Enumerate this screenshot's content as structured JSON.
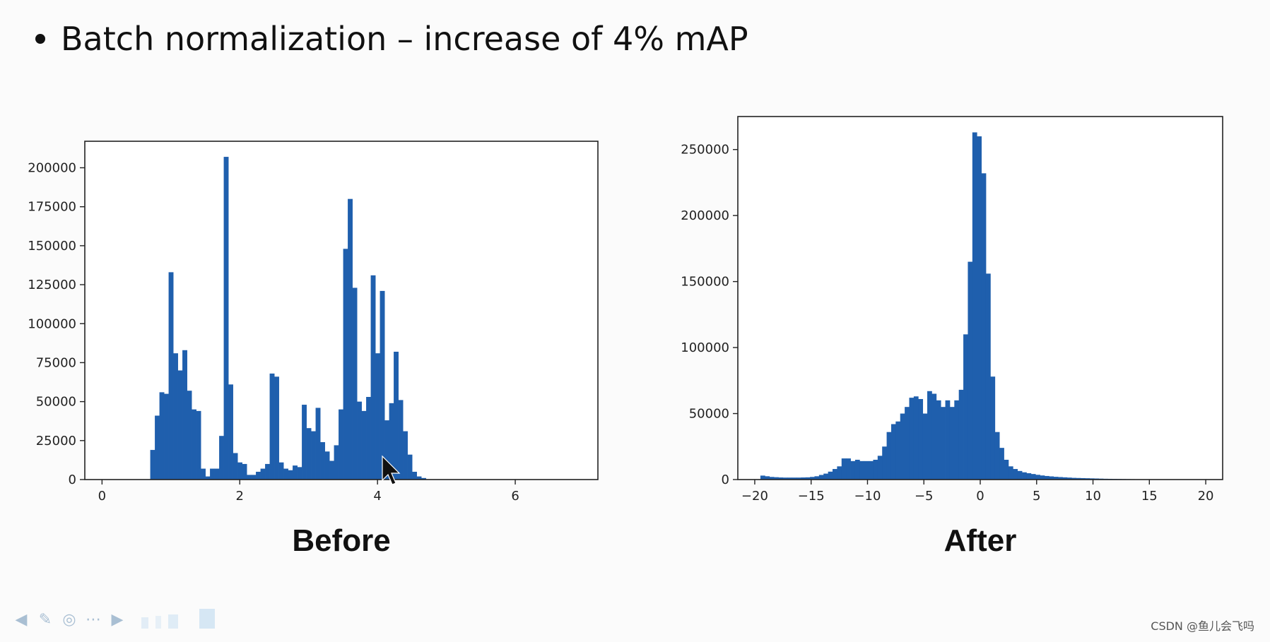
{
  "slide": {
    "bullet_text": "Batch normalization – increase of 4% mAP"
  },
  "watermark": "CSDN @鱼儿会飞吗",
  "toolbar": {
    "icons": [
      "arrow-left-icon",
      "pencil-icon",
      "zoom-icon",
      "more-icon",
      "arrow-right-icon"
    ]
  },
  "colors": {
    "bar": "#1f5fad",
    "axis": "#222222",
    "background": "#fbfbfb",
    "toolbar_icon": "#a9bfd3"
  },
  "chart_data": [
    {
      "type": "bar",
      "caption": "Before",
      "title": "",
      "xlabel": "",
      "ylabel": "",
      "xlim": [
        -0.25,
        7.2
      ],
      "ylim": [
        0,
        217000
      ],
      "x_ticks": [
        0,
        2,
        4,
        6
      ],
      "y_ticks": [
        0,
        25000,
        50000,
        75000,
        100000,
        125000,
        150000,
        175000,
        200000
      ],
      "bin_start": 0.7,
      "bin_width": 0.0667,
      "values": [
        19000,
        41000,
        56000,
        55000,
        133000,
        81000,
        70000,
        83000,
        57000,
        45000,
        44000,
        7000,
        2000,
        7000,
        7000,
        28000,
        207000,
        61000,
        17000,
        11000,
        10000,
        3000,
        3000,
        5000,
        7000,
        10000,
        68000,
        66000,
        11000,
        7000,
        6000,
        9000,
        8000,
        48000,
        33000,
        31000,
        46000,
        24000,
        18000,
        12000,
        22000,
        45000,
        148000,
        180000,
        123000,
        50000,
        44000,
        53000,
        131000,
        81000,
        121000,
        38000,
        49000,
        82000,
        51000,
        31000,
        16000,
        5000,
        2000,
        1000
      ],
      "grid": false,
      "legend": "none"
    },
    {
      "type": "bar",
      "caption": "After",
      "title": "",
      "xlabel": "",
      "ylabel": "",
      "xlim": [
        -21.5,
        21.5
      ],
      "ylim": [
        0,
        275000
      ],
      "x_ticks": [
        -20,
        -15,
        -10,
        -5,
        0,
        5,
        10,
        15,
        20
      ],
      "x_tick_labels": [
        "−20",
        "−15",
        "−10",
        "−5",
        "0",
        "5",
        "10",
        "15",
        "20"
      ],
      "y_ticks": [
        0,
        50000,
        100000,
        150000,
        200000,
        250000
      ],
      "bin_start": -19.5,
      "bin_width": 0.4,
      "values": [
        3000,
        2500,
        2000,
        1800,
        1600,
        1500,
        1500,
        1500,
        1500,
        1600,
        1700,
        2000,
        2500,
        3500,
        4500,
        6000,
        8000,
        10000,
        16000,
        16000,
        14000,
        15000,
        14000,
        14000,
        14000,
        15000,
        18000,
        25000,
        36000,
        42000,
        44000,
        50000,
        55000,
        62000,
        63000,
        61000,
        50000,
        67000,
        65000,
        60000,
        55000,
        60000,
        55000,
        60000,
        68000,
        110000,
        165000,
        263000,
        260000,
        232000,
        156000,
        78000,
        36000,
        24000,
        15000,
        10000,
        8000,
        6500,
        5500,
        4800,
        4200,
        3600,
        3100,
        2700,
        2400,
        2100,
        1900,
        1700,
        1500,
        1300,
        1200,
        1100,
        1000,
        900,
        800,
        700,
        600,
        550,
        500,
        450,
        400,
        350,
        300,
        250,
        200,
        150,
        120,
        100,
        80,
        60,
        50,
        40,
        30,
        20,
        10,
        5,
        0
      ],
      "grid": false,
      "legend": "none"
    }
  ]
}
